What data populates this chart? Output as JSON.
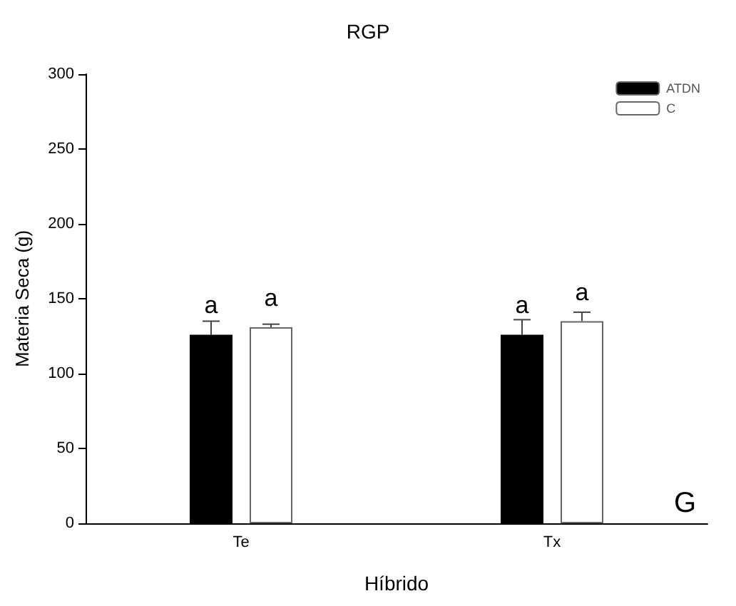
{
  "chart_data": {
    "type": "bar",
    "title": "RGP",
    "xlabel": "Híbrido",
    "ylabel": "Materia Seca (g)",
    "categories": [
      "Te",
      "Tx"
    ],
    "series": [
      {
        "name": "ATDN",
        "color": "#000000",
        "values": [
          126,
          126
        ],
        "errors": [
          [
            126,
            135
          ],
          [
            126,
            136
          ]
        ],
        "value_labels": [
          "a",
          "a"
        ]
      },
      {
        "name": "C",
        "color": "#ffffff",
        "values": [
          131,
          135
        ],
        "errors": [
          [
            131,
            133
          ],
          [
            135,
            141
          ]
        ],
        "value_labels": [
          "a",
          "a"
        ]
      }
    ],
    "ylim": [
      0,
      300
    ],
    "yticks": [
      0,
      50,
      100,
      150,
      200,
      250,
      300
    ],
    "grid": false,
    "legend": "top right",
    "annotations": [
      "G"
    ]
  }
}
